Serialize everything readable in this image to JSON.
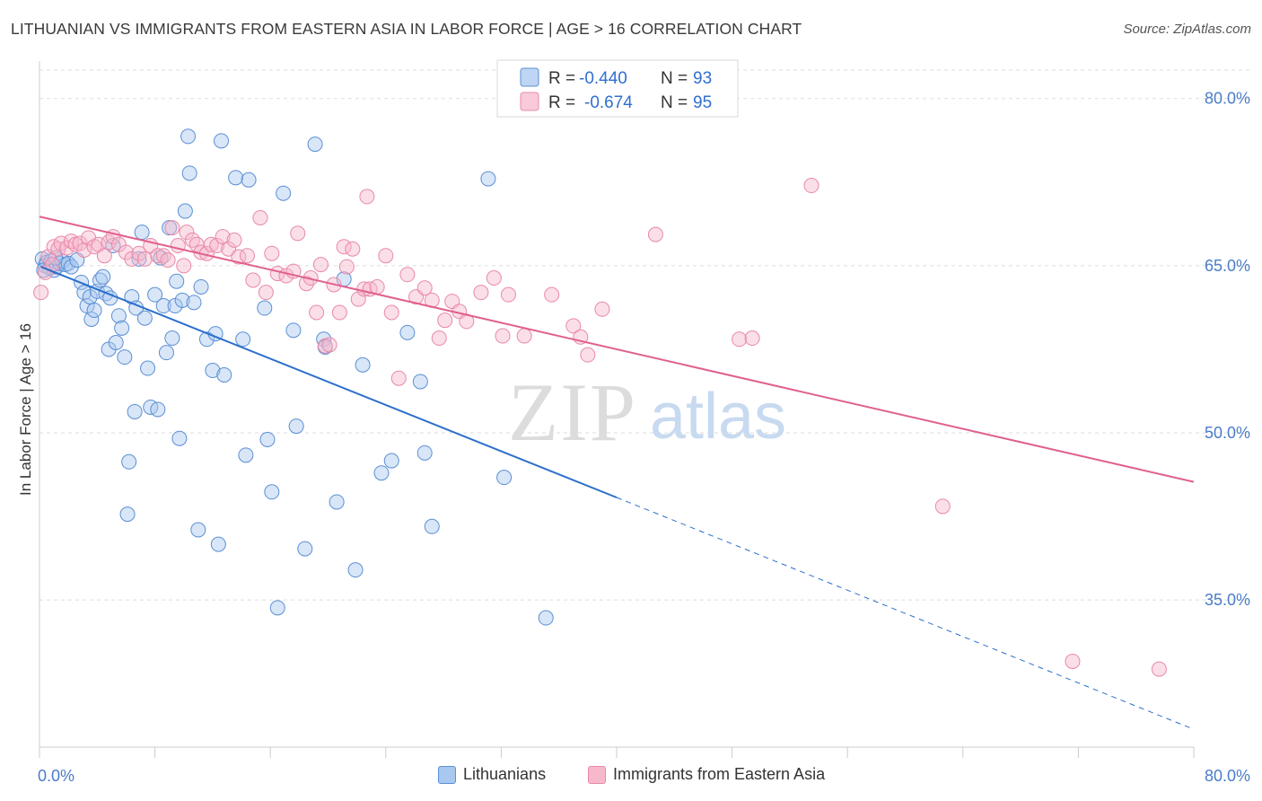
{
  "title": "LITHUANIAN VS IMMIGRANTS FROM EASTERN ASIA IN LABOR FORCE | AGE > 16 CORRELATION CHART",
  "source": "Source: ZipAtlas.com",
  "watermark": {
    "zip": "ZIP",
    "atlas": "atlas"
  },
  "legend": {
    "r_label": "R =",
    "n_label": "N =",
    "entries": [
      {
        "r": "-0.440",
        "n": "93"
      },
      {
        "r": "-0.674",
        "n": "95"
      }
    ]
  },
  "bottom_legend": [
    "Lithuanians",
    "Immigrants from Eastern Asia"
  ],
  "colors": {
    "lithuanians_fill": "#a8c8f0",
    "lithuanians_stroke": "#5b8fd4",
    "lithuanians_line": "#2b6fcc",
    "eastern_asia_fill": "#f7b8cc",
    "eastern_asia_stroke": "#e889a8",
    "eastern_asia_line": "#e06090",
    "axis_label": "#4a7cc7",
    "grid": "#dddddd"
  },
  "chart_data": {
    "type": "scatter",
    "ylabel": "In Labor Force | Age > 16",
    "xlim": [
      0,
      80
    ],
    "ylim": [
      21.8,
      83.2
    ],
    "x_ticks": [
      "0.0%",
      "80.0%"
    ],
    "y_ticks": [
      {
        "value": 80,
        "label": "80.0%"
      },
      {
        "value": 65,
        "label": "65.0%"
      },
      {
        "value": 50,
        "label": "50.0%"
      },
      {
        "value": 35,
        "label": "35.0%"
      }
    ],
    "grid": true,
    "series": [
      {
        "name": "Lithuanians",
        "trend": {
          "x1": 0.1,
          "y1": 64.9,
          "x2": 40,
          "y2": 44.2,
          "dash_to_x": 80,
          "dash_to_y": 23.4
        },
        "points": [
          [
            0.2,
            65.6
          ],
          [
            0.4,
            65.0
          ],
          [
            0.5,
            65.3
          ],
          [
            0.7,
            64.8
          ],
          [
            0.8,
            65.4
          ],
          [
            1.0,
            64.6
          ],
          [
            1.2,
            64.9
          ],
          [
            1.4,
            65.2
          ],
          [
            1.6,
            65.4
          ],
          [
            1.8,
            65.1
          ],
          [
            2.0,
            65.2
          ],
          [
            2.2,
            64.9
          ],
          [
            2.6,
            65.5
          ],
          [
            2.9,
            63.5
          ],
          [
            3.1,
            62.6
          ],
          [
            3.3,
            61.4
          ],
          [
            3.5,
            62.2
          ],
          [
            3.6,
            60.2
          ],
          [
            3.8,
            61.0
          ],
          [
            4.0,
            62.7
          ],
          [
            4.2,
            63.7
          ],
          [
            4.4,
            64.0
          ],
          [
            4.6,
            62.5
          ],
          [
            4.8,
            57.5
          ],
          [
            4.9,
            62.1
          ],
          [
            5.1,
            66.8
          ],
          [
            5.3,
            58.1
          ],
          [
            5.5,
            60.5
          ],
          [
            5.7,
            59.4
          ],
          [
            5.9,
            56.8
          ],
          [
            6.2,
            47.4
          ],
          [
            6.1,
            42.7
          ],
          [
            6.4,
            62.2
          ],
          [
            6.6,
            51.9
          ],
          [
            6.7,
            61.2
          ],
          [
            6.9,
            65.6
          ],
          [
            7.1,
            68.0
          ],
          [
            7.3,
            60.3
          ],
          [
            7.5,
            55.8
          ],
          [
            7.7,
            52.3
          ],
          [
            8.0,
            62.4
          ],
          [
            8.2,
            52.1
          ],
          [
            8.4,
            65.7
          ],
          [
            8.6,
            61.4
          ],
          [
            8.8,
            57.2
          ],
          [
            9.0,
            68.4
          ],
          [
            9.2,
            58.5
          ],
          [
            9.4,
            61.4
          ],
          [
            9.5,
            63.6
          ],
          [
            9.7,
            49.5
          ],
          [
            9.9,
            61.9
          ],
          [
            10.1,
            69.9
          ],
          [
            10.3,
            76.6
          ],
          [
            10.4,
            73.3
          ],
          [
            10.7,
            61.7
          ],
          [
            11.0,
            41.3
          ],
          [
            11.2,
            63.1
          ],
          [
            11.6,
            58.4
          ],
          [
            12.0,
            55.6
          ],
          [
            12.2,
            58.9
          ],
          [
            12.4,
            40.0
          ],
          [
            12.6,
            76.2
          ],
          [
            12.8,
            55.2
          ],
          [
            13.6,
            72.9
          ],
          [
            14.1,
            58.4
          ],
          [
            14.3,
            48.0
          ],
          [
            14.5,
            72.7
          ],
          [
            15.8,
            49.4
          ],
          [
            15.6,
            61.2
          ],
          [
            16.1,
            44.7
          ],
          [
            16.5,
            34.3
          ],
          [
            16.9,
            71.5
          ],
          [
            17.6,
            59.2
          ],
          [
            17.8,
            50.6
          ],
          [
            18.4,
            39.6
          ],
          [
            19.1,
            75.9
          ],
          [
            19.7,
            58.4
          ],
          [
            19.8,
            57.7
          ],
          [
            20.6,
            43.8
          ],
          [
            21.1,
            63.8
          ],
          [
            21.9,
            37.7
          ],
          [
            22.4,
            56.1
          ],
          [
            23.7,
            46.4
          ],
          [
            24.4,
            47.5
          ],
          [
            25.5,
            59.0
          ],
          [
            26.4,
            54.6
          ],
          [
            26.7,
            48.2
          ],
          [
            27.2,
            41.6
          ],
          [
            31.1,
            72.8
          ],
          [
            32.2,
            46.0
          ],
          [
            35.1,
            33.4
          ],
          [
            0.3,
            64.6
          ],
          [
            1.1,
            65.7
          ]
        ]
      },
      {
        "name": "Immigrants from Eastern Asia",
        "trend": {
          "x1": 0,
          "y1": 69.4,
          "x2": 80,
          "y2": 45.6
        },
        "points": [
          [
            0.1,
            62.6
          ],
          [
            0.4,
            64.4
          ],
          [
            0.6,
            65.8
          ],
          [
            0.9,
            65.1
          ],
          [
            1.0,
            66.7
          ],
          [
            1.3,
            66.5
          ],
          [
            1.5,
            67.0
          ],
          [
            1.9,
            66.6
          ],
          [
            2.2,
            67.2
          ],
          [
            2.5,
            66.9
          ],
          [
            2.8,
            67.0
          ],
          [
            3.1,
            66.4
          ],
          [
            3.4,
            67.5
          ],
          [
            3.8,
            66.7
          ],
          [
            4.1,
            66.9
          ],
          [
            4.5,
            65.9
          ],
          [
            4.8,
            67.1
          ],
          [
            5.1,
            67.6
          ],
          [
            5.5,
            66.9
          ],
          [
            6.0,
            66.2
          ],
          [
            6.4,
            65.6
          ],
          [
            6.9,
            66.1
          ],
          [
            7.3,
            65.6
          ],
          [
            7.7,
            66.8
          ],
          [
            8.2,
            65.9
          ],
          [
            8.6,
            65.9
          ],
          [
            8.9,
            65.5
          ],
          [
            9.2,
            68.4
          ],
          [
            9.6,
            66.8
          ],
          [
            10.0,
            65.0
          ],
          [
            10.2,
            68.0
          ],
          [
            10.6,
            67.3
          ],
          [
            10.9,
            66.9
          ],
          [
            11.2,
            66.2
          ],
          [
            11.6,
            66.1
          ],
          [
            11.9,
            66.9
          ],
          [
            12.3,
            66.8
          ],
          [
            12.7,
            67.6
          ],
          [
            13.1,
            66.5
          ],
          [
            13.5,
            67.3
          ],
          [
            13.8,
            65.8
          ],
          [
            14.4,
            65.9
          ],
          [
            14.8,
            63.7
          ],
          [
            15.3,
            69.3
          ],
          [
            15.7,
            62.6
          ],
          [
            16.1,
            66.1
          ],
          [
            16.5,
            64.3
          ],
          [
            17.1,
            64.1
          ],
          [
            17.6,
            64.5
          ],
          [
            17.9,
            67.9
          ],
          [
            18.5,
            63.4
          ],
          [
            18.8,
            63.9
          ],
          [
            19.2,
            60.8
          ],
          [
            19.5,
            65.1
          ],
          [
            19.8,
            57.8
          ],
          [
            20.1,
            57.9
          ],
          [
            20.4,
            63.3
          ],
          [
            20.8,
            60.8
          ],
          [
            21.1,
            66.7
          ],
          [
            21.3,
            64.9
          ],
          [
            21.7,
            66.5
          ],
          [
            22.1,
            62.0
          ],
          [
            22.5,
            62.9
          ],
          [
            22.9,
            62.9
          ],
          [
            23.4,
            63.1
          ],
          [
            24.0,
            65.9
          ],
          [
            24.4,
            60.8
          ],
          [
            24.9,
            54.9
          ],
          [
            25.5,
            64.2
          ],
          [
            26.1,
            62.2
          ],
          [
            26.7,
            63.0
          ],
          [
            27.2,
            61.9
          ],
          [
            27.7,
            58.5
          ],
          [
            28.1,
            60.1
          ],
          [
            28.6,
            61.8
          ],
          [
            29.1,
            60.9
          ],
          [
            29.6,
            60.0
          ],
          [
            30.6,
            62.6
          ],
          [
            31.5,
            63.9
          ],
          [
            32.1,
            58.7
          ],
          [
            32.5,
            62.4
          ],
          [
            33.6,
            58.7
          ],
          [
            35.5,
            62.4
          ],
          [
            37.0,
            59.6
          ],
          [
            37.5,
            58.6
          ],
          [
            38.0,
            57.0
          ],
          [
            39.0,
            61.1
          ],
          [
            42.7,
            67.8
          ],
          [
            48.5,
            58.4
          ],
          [
            49.4,
            58.5
          ],
          [
            53.5,
            72.2
          ],
          [
            62.6,
            43.4
          ],
          [
            71.6,
            29.5
          ],
          [
            77.6,
            28.8
          ],
          [
            22.7,
            71.2
          ]
        ]
      }
    ]
  }
}
